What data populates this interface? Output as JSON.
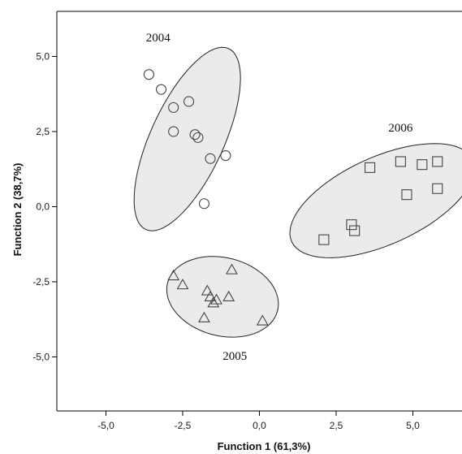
{
  "chart_data": {
    "type": "scatter",
    "title": "",
    "xlabel": "Function 1 (61,3%)",
    "ylabel": "Function 2 (38,7%)",
    "xlim": [
      -6.6,
      6.6
    ],
    "ylim": [
      -6.8,
      6.5
    ],
    "xticks": [
      -5.0,
      -2.5,
      0.0,
      2.5,
      5.0
    ],
    "xtick_labels": [
      "-5,0",
      "-2,5",
      "0,0",
      "2,5",
      "5,0"
    ],
    "yticks": [
      5.0,
      2.5,
      0.0,
      -2.5,
      -5.0
    ],
    "ytick_labels": [
      "5,0",
      "2,5",
      "0,0",
      "-2,5",
      "-5,0"
    ],
    "grid": false,
    "series": [
      {
        "name": "2004",
        "marker": "circle",
        "points": [
          [
            -3.6,
            4.4
          ],
          [
            -3.2,
            3.9
          ],
          [
            -2.3,
            3.5
          ],
          [
            -2.8,
            3.3
          ],
          [
            -2.1,
            2.4
          ],
          [
            -2.8,
            2.5
          ],
          [
            -2.0,
            2.3
          ],
          [
            -1.6,
            1.6
          ],
          [
            -1.1,
            1.7
          ],
          [
            -1.8,
            0.1
          ]
        ]
      },
      {
        "name": "2005",
        "marker": "triangle",
        "points": [
          [
            -2.8,
            -2.3
          ],
          [
            -2.5,
            -2.6
          ],
          [
            -0.9,
            -2.1
          ],
          [
            -1.7,
            -2.8
          ],
          [
            -1.6,
            -3.0
          ],
          [
            -1.0,
            -3.0
          ],
          [
            -1.5,
            -3.2
          ],
          [
            -1.4,
            -3.1
          ],
          [
            -1.8,
            -3.7
          ],
          [
            0.1,
            -3.8
          ]
        ]
      },
      {
        "name": "2006",
        "marker": "square",
        "points": [
          [
            4.6,
            1.5
          ],
          [
            5.8,
            1.5
          ],
          [
            5.3,
            1.4
          ],
          [
            3.6,
            1.3
          ],
          [
            5.8,
            0.6
          ],
          [
            4.8,
            0.4
          ],
          [
            3.0,
            -0.6
          ],
          [
            3.1,
            -0.8
          ],
          [
            2.1,
            -1.1
          ]
        ]
      }
    ],
    "group_labels": [
      {
        "text": "2004",
        "x": -3.3,
        "y": 5.5
      },
      {
        "text": "2006",
        "x": 4.6,
        "y": 2.5
      },
      {
        "text": "2005",
        "x": -0.8,
        "y": -5.1
      }
    ],
    "ellipses": [
      {
        "group": "2004",
        "cx": -2.35,
        "cy": 2.25,
        "rx": 3.3,
        "ry": 1.2,
        "angle_deg": 66
      },
      {
        "group": "2005",
        "cx": -1.2,
        "cy": -3.0,
        "rx": 1.85,
        "ry": 1.3,
        "angle_deg": -15
      },
      {
        "group": "2006",
        "cx": 4.0,
        "cy": 0.2,
        "rx": 3.25,
        "ry": 1.45,
        "angle_deg": 25
      }
    ],
    "colors": {
      "ellipse_fill": "#ebebeb",
      "ellipse_stroke": "#222222",
      "marker_stroke": "#444444",
      "axis": "#000000"
    }
  }
}
